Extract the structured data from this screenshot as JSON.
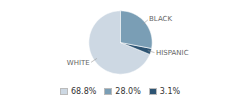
{
  "chart_data": {
    "type": "pie",
    "categories": [
      "WHITE",
      "HISPANIC",
      "BLACK"
    ],
    "values": [
      68.8,
      3.1,
      28.0
    ],
    "value_labels": [
      "68.8%",
      "3.1%",
      "28.0%"
    ],
    "colors": [
      "#cdd8e3",
      "#2d5473",
      "#7a9eb5"
    ],
    "legend": "bottom"
  }
}
